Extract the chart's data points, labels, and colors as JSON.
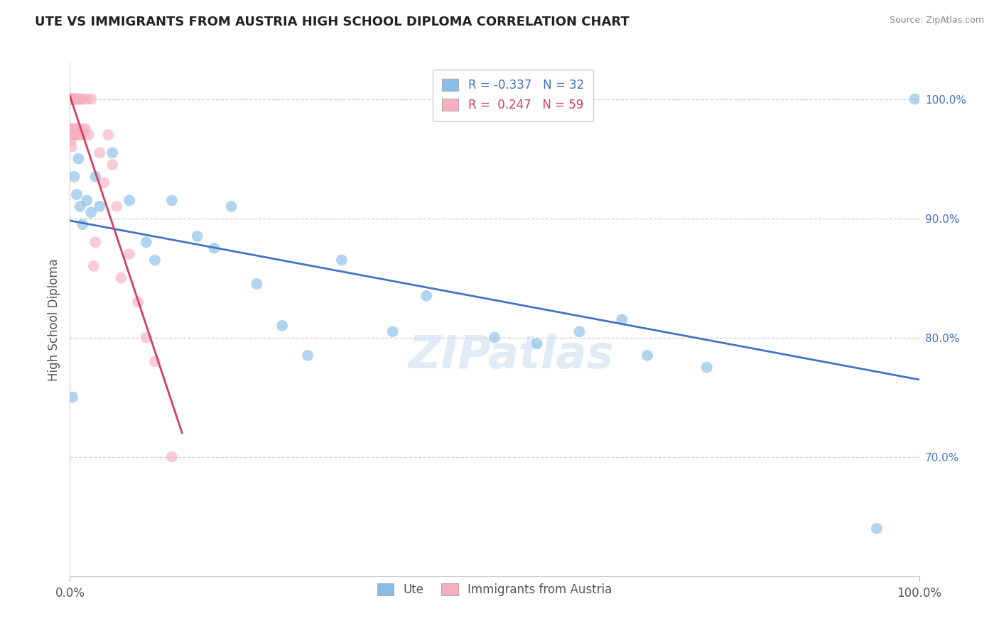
{
  "title": "UTE VS IMMIGRANTS FROM AUSTRIA HIGH SCHOOL DIPLOMA CORRELATION CHART",
  "source": "Source: ZipAtlas.com",
  "ylabel": "High School Diploma",
  "watermark": "ZIPatlas",
  "legend": {
    "blue_R": "-0.337",
    "blue_N": "32",
    "pink_R": "0.247",
    "pink_N": "59"
  },
  "blue_color": "#88bde8",
  "pink_color": "#f7afc0",
  "blue_line_color": "#4472c4",
  "pink_line_color": "#d04060",
  "xlim": [
    0,
    100
  ],
  "ylim": [
    60,
    103
  ],
  "yticks": [
    100,
    90,
    80,
    70
  ],
  "ytick_labels": [
    "100.0%",
    "90.0%",
    "80.0%",
    "70.0%"
  ],
  "ute_x": [
    0.3,
    0.5,
    0.8,
    1.0,
    1.2,
    1.5,
    2.0,
    2.5,
    3.0,
    3.5,
    5.0,
    7.0,
    9.0,
    10.0,
    12.0,
    15.0,
    17.0,
    19.0,
    22.0,
    25.0,
    28.0,
    32.0,
    38.0,
    42.0,
    50.0,
    55.0,
    60.0,
    65.0,
    68.0,
    75.0,
    95.0,
    99.5
  ],
  "ute_y": [
    75.0,
    93.5,
    92.0,
    95.0,
    91.0,
    89.5,
    91.5,
    90.5,
    93.5,
    91.0,
    95.5,
    91.5,
    88.0,
    86.5,
    91.5,
    88.5,
    87.5,
    91.0,
    84.5,
    81.0,
    78.5,
    86.5,
    80.5,
    83.5,
    80.0,
    79.5,
    80.5,
    81.5,
    78.5,
    77.5,
    64.0,
    100.0
  ],
  "austria_x": [
    0.05,
    0.07,
    0.1,
    0.12,
    0.12,
    0.15,
    0.15,
    0.18,
    0.2,
    0.2,
    0.22,
    0.25,
    0.25,
    0.28,
    0.3,
    0.3,
    0.32,
    0.35,
    0.35,
    0.38,
    0.4,
    0.4,
    0.42,
    0.45,
    0.5,
    0.5,
    0.55,
    0.6,
    0.65,
    0.7,
    0.75,
    0.8,
    0.85,
    0.9,
    0.95,
    1.0,
    1.1,
    1.2,
    1.3,
    1.4,
    1.5,
    1.6,
    1.8,
    2.0,
    2.2,
    2.5,
    2.8,
    3.0,
    3.5,
    4.0,
    4.5,
    5.0,
    5.5,
    6.0,
    7.0,
    8.0,
    9.0,
    10.0,
    12.0
  ],
  "austria_y": [
    100.0,
    97.5,
    100.0,
    100.0,
    96.5,
    100.0,
    97.0,
    100.0,
    100.0,
    96.0,
    100.0,
    100.0,
    97.5,
    100.0,
    100.0,
    97.0,
    100.0,
    100.0,
    97.5,
    100.0,
    100.0,
    97.0,
    100.0,
    100.0,
    100.0,
    97.0,
    100.0,
    100.0,
    97.0,
    100.0,
    97.5,
    100.0,
    97.0,
    100.0,
    97.5,
    100.0,
    100.0,
    97.0,
    100.0,
    97.5,
    100.0,
    97.0,
    97.5,
    100.0,
    97.0,
    100.0,
    86.0,
    88.0,
    95.5,
    93.0,
    97.0,
    94.5,
    91.0,
    85.0,
    87.0,
    83.0,
    80.0,
    78.0,
    70.0
  ]
}
